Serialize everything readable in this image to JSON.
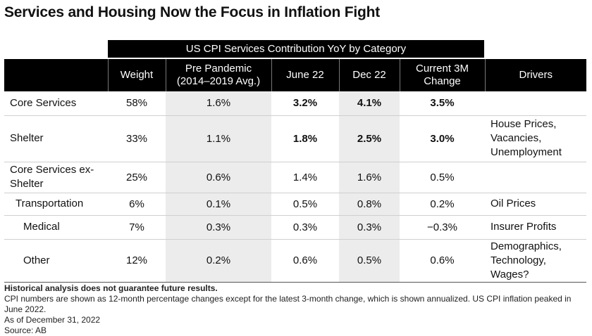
{
  "title": "Services and Housing Now the Focus in Inflation Fight",
  "chart_data": {
    "type": "table",
    "title": "US CPI Services Contribution YoY by Category",
    "columns": [
      "",
      "Weight",
      "Pre Pandemic (2014–2019 Avg.)",
      "June 22",
      "Dec 22",
      "Current 3M Change",
      "Drivers"
    ],
    "rows": [
      {
        "category": "Core Services",
        "weight": "58%",
        "pre": "1.6%",
        "jun": "3.2%",
        "dec": "4.1%",
        "cur": "3.5%",
        "drivers": "",
        "bold": true,
        "indent": 0,
        "height": 34
      },
      {
        "category": "Shelter",
        "weight": "33%",
        "pre": "1.1%",
        "jun": "1.8%",
        "dec": "2.5%",
        "cur": "3.0%",
        "drivers": "House Prices,\nVacancies,\nUnemployment",
        "bold": true,
        "indent": 0,
        "height": 66
      },
      {
        "category": "Core Services ex-\nShelter",
        "weight": "25%",
        "pre": "0.6%",
        "jun": "1.4%",
        "dec": "1.6%",
        "cur": "0.5%",
        "drivers": "",
        "bold": false,
        "indent": 0,
        "height": 44
      },
      {
        "category": "Transportation",
        "weight": "6%",
        "pre": "0.1%",
        "jun": "0.5%",
        "dec": "0.8%",
        "cur": "0.2%",
        "drivers": "Oil Prices",
        "bold": false,
        "indent": 1,
        "height": 32
      },
      {
        "category": "Medical",
        "weight": "7%",
        "pre": "0.3%",
        "jun": "0.3%",
        "dec": "0.3%",
        "cur": "−0.3%",
        "drivers": "Insurer Profits",
        "bold": false,
        "indent": 2,
        "height": 34
      },
      {
        "category": "Other",
        "weight": "12%",
        "pre": "0.2%",
        "jun": "0.6%",
        "dec": "0.5%",
        "cur": "0.6%",
        "drivers": "Demographics,\nTechnology, Wages?",
        "bold": false,
        "indent": 2,
        "height": 44
      }
    ]
  },
  "notes": {
    "disclaimer": "Historical analysis does not guarantee future results.",
    "line1": "CPI numbers are shown as 12-month percentage changes except for the latest 3-month change, which is shown annualized. US CPI inflation peaked in June 2022.",
    "line2": "As of December 31, 2022",
    "line3": "Source: AB"
  }
}
